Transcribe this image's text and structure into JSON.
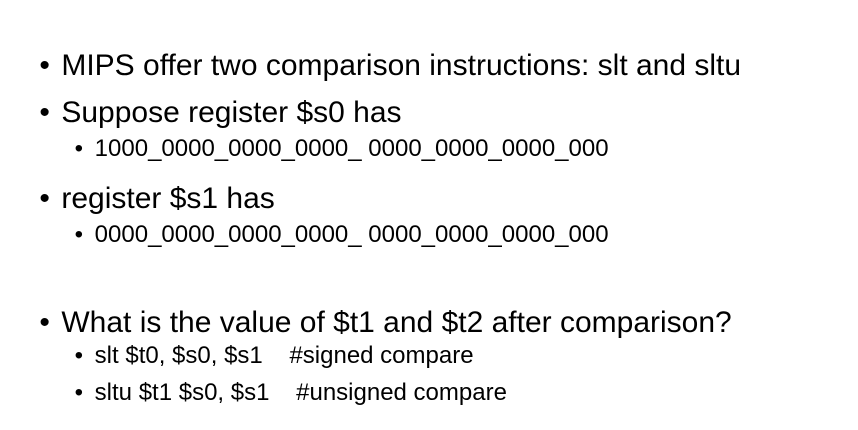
{
  "slide": {
    "bullets": [
      {
        "level": 1,
        "text": "MIPS offer two comparison instructions: slt and sltu"
      },
      {
        "level": 1,
        "text": "Suppose register $s0 has"
      },
      {
        "level": 2,
        "text": "1000_0000_0000_0000_ 0000_0000_0000_000"
      },
      {
        "level": 1,
        "text": "register $s1 has"
      },
      {
        "level": 2,
        "text": "0000_0000_0000_0000_ 0000_0000_0000_000"
      },
      {
        "level": 1,
        "text": "What is the value of $t1 and $t2 after comparison?"
      },
      {
        "level": 2,
        "text": "slt $t0, $s0, $s1    #signed compare"
      },
      {
        "level": 2,
        "text": "sltu $t1 $s0, $s1    #unsigned compare"
      }
    ],
    "bullet_glyph": "•"
  }
}
